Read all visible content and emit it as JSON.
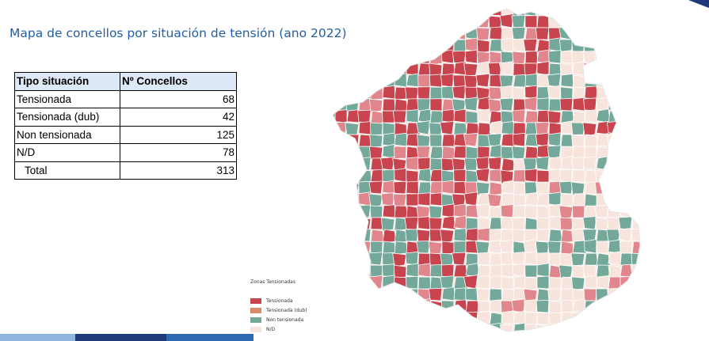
{
  "title": "Mapa de concellos por situación de tensión (ano 2022)",
  "table": {
    "headers": [
      "Tipo situación",
      "Nº Concellos"
    ],
    "rows": [
      {
        "label": "Tensionada",
        "value": "68"
      },
      {
        "label": "Tensionada (dub)",
        "value": "42"
      },
      {
        "label": "Non tensionada",
        "value": "125"
      },
      {
        "label": "N/D",
        "value": "78"
      }
    ],
    "total": {
      "label": "Total",
      "value": "313"
    }
  },
  "legend": {
    "title": "Zonas Tensionadas",
    "items": [
      {
        "label": "Tensionada",
        "color": "#c8444f"
      },
      {
        "label": "Tensionada (dub)",
        "color": "#d88b67"
      },
      {
        "label": "Non tensionada",
        "color": "#73a89a"
      },
      {
        "label": "N/D",
        "color": "#f7e4dc"
      }
    ]
  },
  "map_colors": {
    "tensionada": "#c8444f",
    "tensionada_dub": "#e0868c",
    "non_tensionada": "#73a89a",
    "nd": "#f7e4dc",
    "border": "#ffffff"
  },
  "bottom_bar_colors": [
    "#8eb6df",
    "#1e3a78",
    "#2f68b3"
  ],
  "corner_color": "#1e3a78"
}
